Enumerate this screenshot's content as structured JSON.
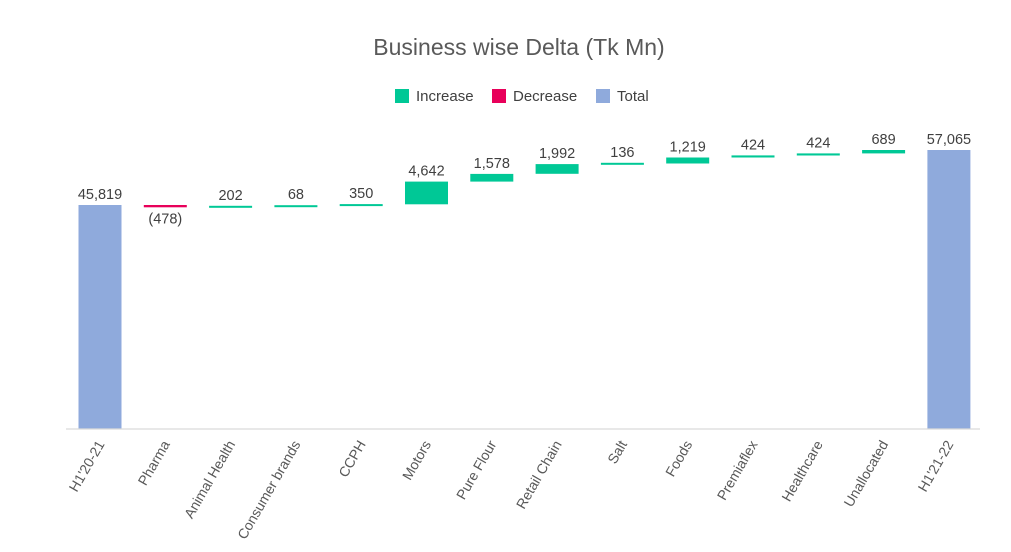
{
  "chart_data": {
    "type": "waterfall",
    "title": "Business wise Delta (Tk Mn)",
    "legend": {
      "position": "top",
      "entries": [
        {
          "key": "increase",
          "label": "Increase",
          "color": "#00C896"
        },
        {
          "key": "decrease",
          "label": "Decrease",
          "color": "#E8005A"
        },
        {
          "key": "total",
          "label": "Total",
          "color": "#8FAADC"
        }
      ]
    },
    "categories": [
      "H1'20-21",
      "Pharma",
      "Animal Health",
      "Consumer brands",
      "CCPH",
      "Motors",
      "Pure Flour",
      "Retail Chain",
      "Salt",
      "Foods",
      "Premiaflex",
      "Healthcare",
      "Unallocated",
      "H1'21-22"
    ],
    "values": [
      45819,
      -478,
      202,
      68,
      350,
      4642,
      1578,
      1992,
      136,
      1219,
      424,
      424,
      689,
      57065
    ],
    "kinds": [
      "total",
      "decrease",
      "increase",
      "increase",
      "increase",
      "increase",
      "increase",
      "increase",
      "increase",
      "increase",
      "increase",
      "increase",
      "increase",
      "total"
    ],
    "labels": [
      "45,819",
      "(478)",
      "202",
      "68",
      "350",
      "4,642",
      "1,578",
      "1,992",
      "136",
      "1,219",
      "424",
      "424",
      "689",
      "57,065"
    ],
    "ylim": [
      0,
      57065
    ],
    "grid": false,
    "xlabel": "",
    "ylabel": ""
  }
}
